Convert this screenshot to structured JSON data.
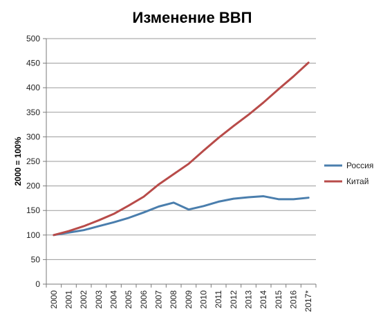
{
  "chart_data": {
    "type": "line",
    "title": "Изменение ВВП",
    "xlabel": "",
    "ylabel": "2000 = 100%",
    "categories": [
      "2000",
      "2001",
      "2002",
      "2003",
      "2004",
      "2005",
      "2006",
      "2007",
      "2008",
      "2009",
      "2010",
      "2011",
      "2012",
      "2013",
      "2014",
      "2015",
      "2016",
      "2017*"
    ],
    "ylim": [
      0,
      500
    ],
    "yticks": [
      "0",
      "50",
      "100",
      "150",
      "200",
      "250",
      "300",
      "350",
      "400",
      "450",
      "500"
    ],
    "grid": true,
    "legend_position": "right",
    "series": [
      {
        "name": "Россия",
        "color": "#4a7ead",
        "values": [
          100,
          105,
          110,
          118,
          126,
          135,
          146,
          158,
          166,
          152,
          159,
          168,
          174,
          177,
          179,
          173,
          173,
          176
        ]
      },
      {
        "name": "Китай",
        "color": "#b84b49",
        "values": [
          100,
          108,
          118,
          130,
          143,
          160,
          178,
          203,
          224,
          245,
          272,
          298,
          322,
          345,
          370,
          397,
          423,
          451
        ]
      }
    ]
  }
}
